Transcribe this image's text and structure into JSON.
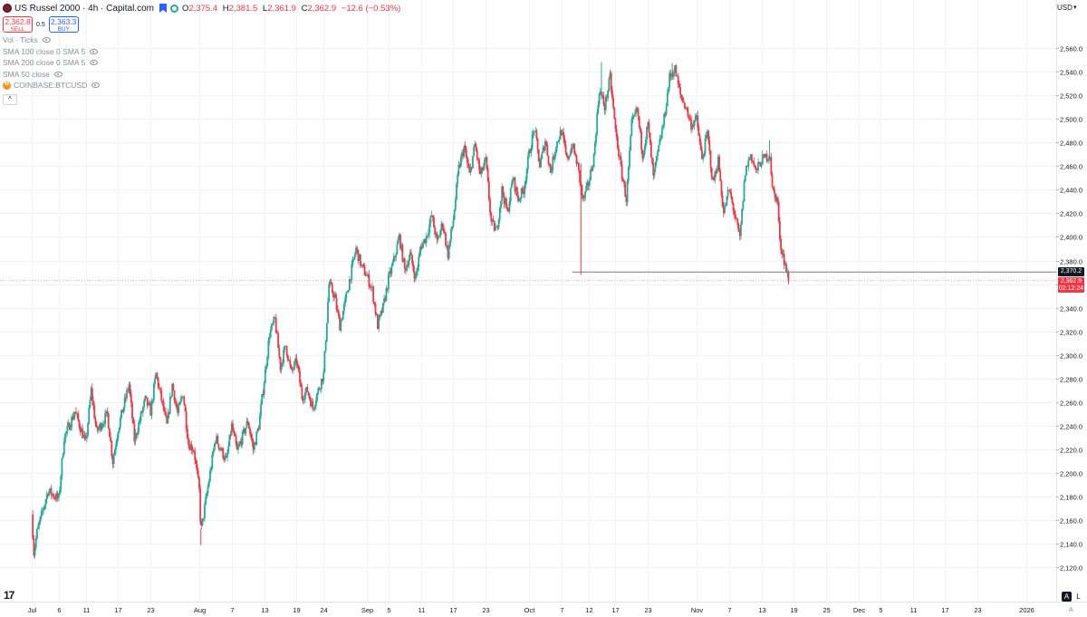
{
  "header": {
    "title": "US Russel 2000 · 4h · Capital.com",
    "ohlc": {
      "o_label": "O",
      "o": "2,375.4",
      "h_label": "H",
      "h": "2,381.5",
      "l_label": "L",
      "l": "2,361.9",
      "c_label": "C",
      "c": "2,362.9",
      "change": "−12.6 (−0.53%)"
    },
    "sell_price": "2,362.8",
    "sell_label": "SELL",
    "spread": "0.5",
    "buy_price": "2,363.3",
    "buy_label": "BUY"
  },
  "indicators": [
    {
      "label": "Vol · Ticks"
    },
    {
      "label": "SMA 100 close 0 SMA 5"
    },
    {
      "label": "SMA 200 close 0 SMA 5"
    },
    {
      "label": "SMA 50 close"
    },
    {
      "label": "COINBASE:BTCUSD"
    }
  ],
  "collapse_label": "^",
  "currency": "USD",
  "scale_buttons": {
    "auto": "A",
    "log": "L"
  },
  "axis_corner": "A",
  "logo_text": "17",
  "colors": {
    "up": "#22ab94",
    "down": "#f23645",
    "grid": "#f0f3fa",
    "axis_text": "#131722"
  },
  "chart_data": {
    "type": "candlestick",
    "title": "US Russel 2000 · 4h · Capital.com",
    "symbol": "US Russel 2000",
    "interval": "4h",
    "ylim": [
      2100,
      2580
    ],
    "y_ticks": [
      "2,120.0",
      "2,140.0",
      "2,160.0",
      "2,180.0",
      "2,200.0",
      "2,220.0",
      "2,240.0",
      "2,260.0",
      "2,280.0",
      "2,300.0",
      "2,320.0",
      "2,340.0",
      "2,360.0",
      "2,380.0",
      "2,400.0",
      "2,420.0",
      "2,440.0",
      "2,460.0",
      "2,480.0",
      "2,500.0",
      "2,520.0",
      "2,540.0",
      "2,560.0"
    ],
    "x_ticks": [
      {
        "label": "Jul",
        "day": 0
      },
      {
        "label": "6",
        "day": 5
      },
      {
        "label": "11",
        "day": 10
      },
      {
        "label": "17",
        "day": 16
      },
      {
        "label": "23",
        "day": 22
      },
      {
        "label": "Aug",
        "day": 31
      },
      {
        "label": "7",
        "day": 37
      },
      {
        "label": "13",
        "day": 43
      },
      {
        "label": "19",
        "day": 49
      },
      {
        "label": "24",
        "day": 54
      },
      {
        "label": "Sep",
        "day": 62
      },
      {
        "label": "5",
        "day": 66
      },
      {
        "label": "11",
        "day": 72
      },
      {
        "label": "17",
        "day": 78
      },
      {
        "label": "23",
        "day": 84
      },
      {
        "label": "Oct",
        "day": 92
      },
      {
        "label": "7",
        "day": 98
      },
      {
        "label": "12",
        "day": 103
      },
      {
        "label": "17",
        "day": 108
      },
      {
        "label": "23",
        "day": 114
      },
      {
        "label": "Nov",
        "day": 123
      },
      {
        "label": "7",
        "day": 129
      },
      {
        "label": "13",
        "day": 135
      },
      {
        "label": "19",
        "day": 141
      },
      {
        "label": "25",
        "day": 147
      },
      {
        "label": "Dec",
        "day": 153
      },
      {
        "label": "5",
        "day": 157
      },
      {
        "label": "11",
        "day": 163
      },
      {
        "label": "17",
        "day": 169
      },
      {
        "label": "23",
        "day": 175
      },
      {
        "label": "2026",
        "day": 184
      }
    ],
    "anchors": [
      [
        0,
        2165
      ],
      [
        0.4,
        2133
      ],
      [
        1,
        2150
      ],
      [
        3,
        2185
      ],
      [
        5,
        2178
      ],
      [
        6,
        2230
      ],
      [
        8,
        2252
      ],
      [
        10,
        2225
      ],
      [
        11,
        2270
      ],
      [
        12,
        2235
      ],
      [
        14,
        2250
      ],
      [
        15,
        2210
      ],
      [
        16,
        2238
      ],
      [
        18,
        2275
      ],
      [
        19,
        2228
      ],
      [
        21,
        2262
      ],
      [
        22,
        2252
      ],
      [
        23,
        2284
      ],
      [
        25,
        2240
      ],
      [
        26,
        2275
      ],
      [
        27,
        2250
      ],
      [
        28,
        2268
      ],
      [
        29,
        2225
      ],
      [
        30,
        2220
      ],
      [
        31,
        2185
      ],
      [
        31.3,
        2150
      ],
      [
        33,
        2200
      ],
      [
        34,
        2230
      ],
      [
        36,
        2210
      ],
      [
        37,
        2240
      ],
      [
        38,
        2218
      ],
      [
        40,
        2244
      ],
      [
        41,
        2220
      ],
      [
        42,
        2240
      ],
      [
        43,
        2278
      ],
      [
        44,
        2318
      ],
      [
        45,
        2330
      ],
      [
        46,
        2290
      ],
      [
        47,
        2308
      ],
      [
        48,
        2285
      ],
      [
        49,
        2295
      ],
      [
        50,
        2265
      ],
      [
        51,
        2270
      ],
      [
        52,
        2255
      ],
      [
        53,
        2270
      ],
      [
        54,
        2284
      ],
      [
        55,
        2360
      ],
      [
        56,
        2350
      ],
      [
        57,
        2325
      ],
      [
        58,
        2345
      ],
      [
        59,
        2368
      ],
      [
        60,
        2390
      ],
      [
        61,
        2375
      ],
      [
        62,
        2367
      ],
      [
        63,
        2355
      ],
      [
        64,
        2325
      ],
      [
        65,
        2340
      ],
      [
        66,
        2364
      ],
      [
        67,
        2380
      ],
      [
        68,
        2400
      ],
      [
        69,
        2372
      ],
      [
        70,
        2385
      ],
      [
        71,
        2365
      ],
      [
        72,
        2392
      ],
      [
        73,
        2400
      ],
      [
        74,
        2418
      ],
      [
        75,
        2395
      ],
      [
        76,
        2412
      ],
      [
        77,
        2385
      ],
      [
        78,
        2415
      ],
      [
        79,
        2458
      ],
      [
        80,
        2476
      ],
      [
        81,
        2452
      ],
      [
        82,
        2478
      ],
      [
        83,
        2452
      ],
      [
        84,
        2465
      ],
      [
        85,
        2412
      ],
      [
        86,
        2405
      ],
      [
        87,
        2440
      ],
      [
        88,
        2420
      ],
      [
        89,
        2450
      ],
      [
        90,
        2432
      ],
      [
        91,
        2440
      ],
      [
        92,
        2470
      ],
      [
        93,
        2492
      ],
      [
        94,
        2460
      ],
      [
        95,
        2482
      ],
      [
        96,
        2455
      ],
      [
        97,
        2478
      ],
      [
        98,
        2490
      ],
      [
        99,
        2465
      ],
      [
        100,
        2478
      ],
      [
        101,
        2460
      ],
      [
        102,
        2430
      ],
      [
        103,
        2445
      ],
      [
        104,
        2468
      ],
      [
        105,
        2525
      ],
      [
        106,
        2510
      ],
      [
        107,
        2535
      ],
      [
        108,
        2490
      ],
      [
        109,
        2458
      ],
      [
        110,
        2432
      ],
      [
        111,
        2495
      ],
      [
        112,
        2508
      ],
      [
        113,
        2470
      ],
      [
        114,
        2495
      ],
      [
        115,
        2450
      ],
      [
        116,
        2475
      ],
      [
        117,
        2500
      ],
      [
        118,
        2535
      ],
      [
        119,
        2542
      ],
      [
        120,
        2520
      ],
      [
        121,
        2510
      ],
      [
        122,
        2495
      ],
      [
        123,
        2500
      ],
      [
        124,
        2465
      ],
      [
        125,
        2488
      ],
      [
        126,
        2445
      ],
      [
        127,
        2465
      ],
      [
        128,
        2420
      ],
      [
        129,
        2440
      ],
      [
        130,
        2420
      ],
      [
        131,
        2398
      ],
      [
        132,
        2455
      ],
      [
        133,
        2470
      ],
      [
        134,
        2455
      ],
      [
        135,
        2465
      ],
      [
        136,
        2468
      ],
      [
        136.6,
        2470
      ],
      [
        137,
        2440
      ],
      [
        138,
        2430
      ],
      [
        138.4,
        2395
      ],
      [
        139,
        2385
      ],
      [
        140,
        2362.9
      ]
    ],
    "wicks": [
      {
        "day": 0.4,
        "low": 2130
      },
      {
        "day": 31.3,
        "low": 2139
      },
      {
        "day": 64,
        "low": 2322
      },
      {
        "day": 101.6,
        "high": 2462,
        "low": 2368
      },
      {
        "day": 105.4,
        "high": 2548
      },
      {
        "day": 118.5,
        "high": 2547
      },
      {
        "day": 136.5,
        "high": 2482
      },
      {
        "day": 140,
        "low": 2360
      }
    ],
    "horizontal_line": {
      "value": 2370.2,
      "label": "2,370.2",
      "start_day": 100
    },
    "current_price": {
      "value": 2362.9,
      "label": "2,362.9",
      "countdown": "02:12:24"
    }
  }
}
